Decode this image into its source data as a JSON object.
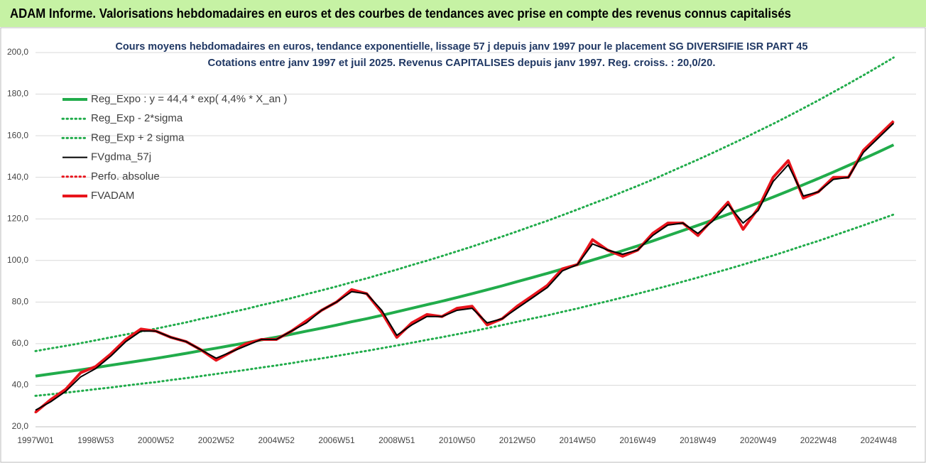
{
  "chart_data": {
    "type": "line",
    "title": "ADAM Informe. Valorisations hebdomadaires en euros et des courbes de tendances avec prise en compte des revenus connus capitalisés",
    "subtitle": [
      "Cours moyens hebdomadaires en euros, tendance exponentielle, lissage 57 j depuis janv 1997 pour le placement SG DIVERSIFIE ISR PART 45",
      "Cotations entre janv 1997 et juil 2025. Revenus CAPITALISES depuis janv 1997. Reg. croiss. : 20,0/20."
    ],
    "categories": [
      "1997W01",
      null,
      null,
      null,
      "1998W53",
      null,
      null,
      null,
      "2000W52",
      null,
      null,
      null,
      "2002W52",
      null,
      null,
      null,
      "2004W52",
      null,
      null,
      null,
      "2006W51",
      null,
      null,
      null,
      "2008W51",
      null,
      null,
      null,
      "2010W50",
      null,
      null,
      null,
      "2012W50",
      null,
      null,
      null,
      "2014W50",
      null,
      null,
      null,
      "2016W49",
      null,
      null,
      null,
      "2018W49",
      null,
      null,
      null,
      "2020W49",
      null,
      null,
      null,
      "2022W48",
      null,
      null,
      null,
      "2024W48",
      null
    ],
    "series": [
      {
        "name": "Reg_Expo : y = 44,4 * exp( 4,4% *  X_an )",
        "color": "#21ac4b",
        "style": "solid-thick",
        "values": [
          44.4,
          45.4,
          46.4,
          47.4,
          48.5,
          49.6,
          50.7,
          51.8,
          52.9,
          54.1,
          55.3,
          56.6,
          57.8,
          59.1,
          60.4,
          61.8,
          63.1,
          64.5,
          66.0,
          67.4,
          68.9,
          70.5,
          72.0,
          73.6,
          75.3,
          77.0,
          78.7,
          80.4,
          82.2,
          84.0,
          85.9,
          87.8,
          89.8,
          91.8,
          93.8,
          95.9,
          98.0,
          100.2,
          102.4,
          104.7,
          107.0,
          109.4,
          111.9,
          114.4,
          116.9,
          119.5,
          122.2,
          124.9,
          127.7,
          130.5,
          133.4,
          136.4,
          139.4,
          142.5,
          145.7,
          148.9,
          152.2,
          155.6
        ]
      },
      {
        "name": "Reg_Exp - 2*sigma",
        "color": "#21ac4b",
        "style": "dotted",
        "values": [
          34.9,
          35.6,
          36.4,
          37.2,
          38.1,
          38.9,
          39.8,
          40.7,
          41.5,
          42.5,
          43.4,
          44.4,
          45.4,
          46.4,
          47.4,
          48.5,
          49.5,
          50.6,
          51.8,
          52.9,
          54.1,
          55.3,
          56.5,
          57.8,
          59.1,
          60.4,
          61.8,
          63.1,
          64.5,
          65.9,
          67.4,
          68.9,
          70.5,
          72.1,
          73.6,
          75.3,
          76.9,
          78.7,
          80.4,
          82.2,
          84.0,
          85.9,
          87.8,
          89.8,
          91.8,
          93.8,
          95.9,
          98.0,
          100.2,
          102.4,
          104.7,
          107.1,
          109.4,
          111.9,
          114.4,
          116.9,
          119.5,
          122.1
        ]
      },
      {
        "name": "Reg_Exp + 2 sigma",
        "color": "#21ac4b",
        "style": "dotted",
        "values": [
          56.4,
          57.7,
          58.9,
          60.2,
          61.6,
          63.0,
          64.4,
          65.8,
          67.2,
          68.7,
          70.2,
          71.9,
          73.4,
          75.1,
          76.7,
          78.5,
          80.1,
          81.9,
          83.8,
          85.6,
          87.5,
          89.5,
          91.4,
          93.5,
          95.6,
          97.8,
          99.9,
          102.1,
          104.4,
          106.7,
          109.1,
          111.5,
          114.0,
          116.6,
          119.1,
          121.8,
          124.5,
          127.3,
          130.0,
          133.0,
          135.9,
          138.9,
          142.1,
          145.3,
          148.5,
          151.8,
          155.2,
          158.6,
          162.2,
          165.7,
          169.4,
          173.2,
          177.0,
          181.0,
          185.0,
          189.1,
          193.3,
          197.6
        ]
      },
      {
        "name": "FVgdma_57j",
        "color": "#000000",
        "style": "solid",
        "values": [
          28,
          32,
          37,
          44,
          48,
          54,
          61,
          66,
          66,
          63,
          61,
          57,
          53,
          56,
          59,
          62,
          62,
          66,
          70,
          76,
          80,
          85,
          84,
          76,
          64,
          69,
          73,
          73,
          76,
          77,
          70,
          72,
          77,
          82,
          87,
          95,
          98,
          108,
          105,
          103,
          105,
          112,
          117,
          118,
          113,
          119,
          127,
          118,
          124,
          138,
          146,
          131,
          133,
          139,
          140,
          152,
          159,
          166
        ]
      },
      {
        "name": "Perfo. absolue",
        "color": "#e8141c",
        "style": "dotted",
        "values": [
          27,
          33,
          38,
          46,
          49,
          55,
          62,
          67,
          66,
          63,
          61,
          57,
          52,
          56,
          60,
          62,
          62,
          66,
          71,
          76,
          80,
          86,
          84,
          75,
          63,
          70,
          74,
          73,
          77,
          78,
          69,
          72,
          78,
          83,
          88,
          96,
          98,
          110,
          105,
          102,
          105,
          113,
          118,
          118,
          112,
          120,
          128,
          115,
          125,
          140,
          148,
          130,
          133,
          140,
          140,
          153,
          160,
          167
        ]
      },
      {
        "name": "FVADAM",
        "color": "#e8141c",
        "style": "solid-thick",
        "values": [
          27,
          33,
          38,
          46,
          49,
          55,
          62,
          67,
          66,
          63,
          61,
          57,
          52,
          56,
          60,
          62,
          62,
          66,
          71,
          76,
          80,
          86,
          84,
          75,
          63,
          70,
          74,
          73,
          77,
          78,
          69,
          72,
          78,
          83,
          88,
          96,
          98,
          110,
          105,
          102,
          105,
          113,
          118,
          118,
          112,
          120,
          128,
          115,
          125,
          140,
          148,
          130,
          133,
          140,
          140,
          153,
          160,
          167
        ]
      }
    ],
    "ylim": [
      20,
      200
    ],
    "yticks": [
      {
        "value": 20,
        "label": "20,0"
      },
      {
        "value": 40,
        "label": "40,0"
      },
      {
        "value": 60,
        "label": "60,0"
      },
      {
        "value": 80,
        "label": "80,0"
      },
      {
        "value": 100,
        "label": "100,0"
      },
      {
        "value": 120,
        "label": "120,0"
      },
      {
        "value": 140,
        "label": "140,0"
      },
      {
        "value": 160,
        "label": "160,0"
      },
      {
        "value": 180,
        "label": "180,0"
      },
      {
        "value": 200,
        "label": "200,0"
      }
    ],
    "grid": true,
    "legend": "upper-left"
  }
}
